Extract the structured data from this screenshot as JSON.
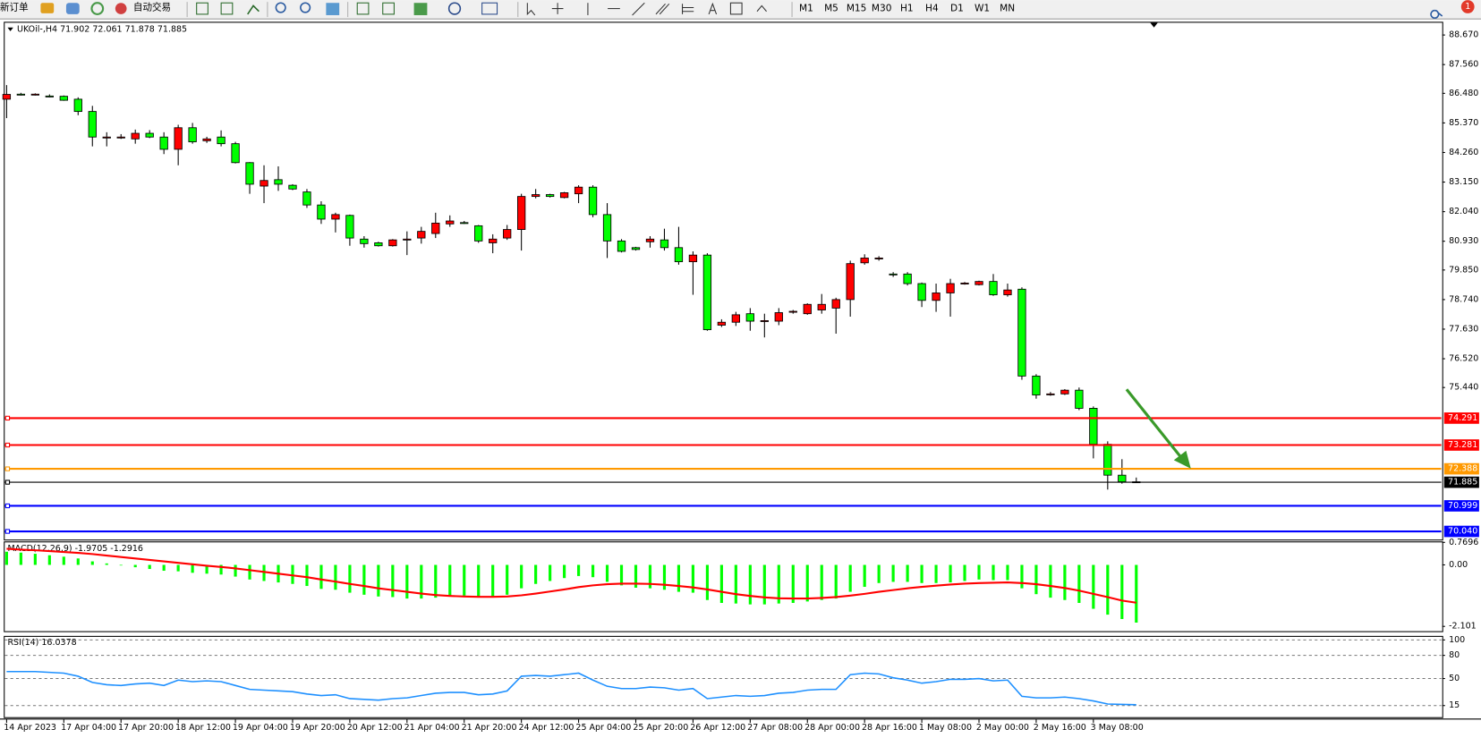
{
  "toolbar": {
    "buttons": [
      "新订单",
      "自动交易"
    ],
    "timeframes": [
      "M1",
      "M5",
      "M15",
      "M30",
      "H1",
      "H4",
      "D1",
      "W1",
      "MN"
    ],
    "badge": "1"
  },
  "chart_data": [
    {
      "type": "candlestick",
      "title": "UKOil-,H4 71.902 72.061 71.878 71.885",
      "x": [
        "14 Apr 2023",
        null,
        null,
        null,
        "17 Apr 04:00",
        null,
        null,
        null,
        "17 Apr 20:00",
        null,
        null,
        null,
        "18 Apr 12:00",
        null,
        null,
        null,
        "19 Apr 04:00",
        null,
        null,
        null,
        "19 Apr 20:00",
        null,
        null,
        null,
        "20 Apr 12:00",
        null,
        null,
        null,
        "21 Apr 04:00",
        null,
        null,
        null,
        "21 Apr 20:00",
        null,
        null,
        null,
        "24 Apr 12:00",
        null,
        null,
        null,
        "25 Apr 04:00",
        null,
        null,
        null,
        "25 Apr 20:00",
        null,
        null,
        null,
        "26 Apr 12:00",
        null,
        null,
        null,
        "27 Apr 08:00",
        null,
        null,
        null,
        "28 Apr 00:00",
        null,
        null,
        null,
        "28 Apr 16:00",
        null,
        null,
        null,
        "1 May 08:00",
        null,
        null,
        null,
        "2 May 00:00",
        null,
        null,
        null,
        "2 May 16:00",
        null,
        null,
        null,
        "3 May 08:00",
        null,
        null,
        null
      ],
      "open": [
        86.26,
        86.45,
        86.44,
        86.38,
        86.37,
        86.26,
        85.8,
        84.84,
        84.84,
        84.77,
        84.98,
        84.84,
        84.38,
        85.19,
        84.7,
        84.84,
        84.59,
        83.88,
        83.0,
        83.24,
        83.03,
        82.78,
        82.29,
        81.76,
        81.9,
        81.01,
        80.87,
        80.76,
        81.0,
        81.05,
        81.22,
        81.58,
        81.63,
        81.51,
        80.87,
        81.05,
        81.37,
        82.61,
        82.68,
        82.57,
        82.71,
        82.96,
        81.93,
        80.94,
        80.69,
        80.91,
        80.98,
        80.69,
        80.16,
        80.41,
        77.78,
        77.89,
        78.21,
        77.93,
        77.93,
        78.28,
        78.21,
        78.35,
        78.42,
        78.74,
        80.12,
        80.27,
        79.7,
        79.7,
        79.34,
        78.71,
        78.99,
        79.34,
        79.3,
        79.42,
        78.92,
        79.13,
        75.87,
        75.2,
        75.2,
        75.34,
        74.66,
        73.31,
        72.15,
        71.902
      ],
      "high": [
        86.79,
        86.5,
        86.48,
        86.44,
        86.4,
        86.33,
        86.01,
        85.02,
        84.95,
        85.12,
        85.1,
        85.02,
        85.3,
        85.37,
        84.85,
        85.09,
        84.66,
        83.9,
        83.78,
        83.74,
        83.07,
        82.89,
        82.43,
        82.0,
        81.93,
        81.12,
        80.91,
        81.01,
        81.3,
        81.47,
        82.0,
        81.9,
        81.69,
        81.54,
        81.19,
        81.54,
        82.71,
        82.89,
        82.71,
        82.78,
        83.03,
        83.03,
        82.36,
        81.01,
        80.72,
        81.12,
        81.4,
        81.47,
        80.55,
        80.48,
        78.0,
        78.28,
        78.42,
        78.21,
        78.42,
        78.35,
        78.6,
        78.95,
        78.81,
        80.2,
        80.44,
        80.37,
        79.77,
        79.77,
        79.38,
        79.34,
        79.52,
        79.4,
        79.45,
        79.7,
        79.34,
        79.2,
        75.94,
        75.27,
        75.38,
        75.44,
        74.73,
        73.42,
        72.75,
        72.061
      ],
      "low": [
        85.55,
        86.4,
        86.4,
        86.33,
        86.2,
        85.66,
        84.49,
        84.49,
        84.77,
        84.59,
        84.8,
        84.2,
        83.78,
        84.59,
        84.62,
        84.49,
        83.85,
        82.71,
        82.36,
        82.82,
        82.85,
        82.18,
        81.58,
        81.26,
        80.76,
        80.69,
        80.73,
        80.73,
        80.41,
        80.84,
        81.05,
        81.47,
        81.58,
        80.87,
        80.48,
        80.98,
        80.58,
        82.54,
        82.57,
        82.54,
        82.36,
        81.83,
        80.3,
        80.51,
        80.58,
        80.69,
        80.58,
        80.05,
        78.92,
        77.57,
        77.71,
        77.75,
        77.57,
        77.32,
        77.78,
        78.21,
        78.17,
        78.21,
        77.46,
        78.1,
        80.05,
        80.2,
        79.59,
        79.27,
        78.46,
        78.28,
        78.1,
        79.3,
        79.27,
        78.88,
        78.85,
        75.73,
        75.02,
        75.13,
        75.16,
        74.59,
        72.78,
        71.61,
        71.83,
        71.878
      ],
      "close": [
        86.44,
        86.44,
        86.45,
        86.37,
        86.22,
        85.8,
        84.84,
        84.84,
        84.84,
        84.98,
        84.84,
        84.38,
        85.19,
        84.66,
        84.77,
        84.59,
        83.88,
        83.07,
        83.21,
        83.07,
        82.89,
        82.29,
        81.76,
        81.93,
        81.05,
        80.84,
        80.76,
        80.98,
        81.01,
        81.3,
        81.61,
        81.69,
        81.61,
        80.94,
        81.01,
        81.37,
        82.61,
        82.68,
        82.61,
        82.75,
        82.96,
        81.93,
        80.94,
        80.55,
        80.62,
        81.01,
        80.69,
        80.16,
        80.41,
        77.61,
        77.89,
        78.17,
        77.93,
        77.95,
        78.25,
        78.3,
        78.56,
        78.56,
        78.74,
        80.09,
        80.3,
        80.3,
        79.68,
        79.34,
        78.71,
        78.99,
        79.34,
        79.36,
        79.42,
        78.92,
        79.1,
        75.87,
        75.16,
        75.2,
        75.34,
        74.66,
        73.31,
        72.15,
        71.9,
        71.885
      ],
      "up_color": "#ff0000",
      "down_color": "#00ff00",
      "ylim": [
        69.77,
        89.13
      ],
      "yticks": [
        {
          "value": 88.67,
          "label": "88.670"
        },
        {
          "value": 87.56,
          "label": "87.560"
        },
        {
          "value": 86.48,
          "label": "86.480"
        },
        {
          "value": 85.37,
          "label": "85.370"
        },
        {
          "value": 84.26,
          "label": "84.260"
        },
        {
          "value": 83.15,
          "label": "83.150"
        },
        {
          "value": 82.04,
          "label": "82.040"
        },
        {
          "value": 80.93,
          "label": "80.930"
        },
        {
          "value": 79.85,
          "label": "79.850"
        },
        {
          "value": 78.74,
          "label": "78.740"
        },
        {
          "value": 77.63,
          "label": "77.630"
        },
        {
          "value": 76.52,
          "label": "76.520"
        },
        {
          "value": 75.44,
          "label": "75.440"
        }
      ],
      "levels": [
        {
          "value": 74.291,
          "color": "#ff0000"
        },
        {
          "value": 73.281,
          "color": "#ff0000"
        },
        {
          "value": 72.388,
          "color": "#ff9900"
        },
        {
          "value": 71.885,
          "color": "#000000"
        },
        {
          "value": 70.999,
          "color": "#0000ff"
        },
        {
          "value": 70.04,
          "label": "70.040",
          "color": "#0000ff"
        }
      ],
      "grid": false
    },
    {
      "type": "macd",
      "title": "MACD(12,26,9) -1.9705 -1.2916",
      "histogram": [
        0.45,
        0.42,
        0.38,
        0.33,
        0.28,
        0.22,
        0.12,
        0.05,
        -0.02,
        -0.08,
        -0.14,
        -0.2,
        -0.22,
        -0.27,
        -0.3,
        -0.33,
        -0.4,
        -0.5,
        -0.55,
        -0.6,
        -0.65,
        -0.72,
        -0.82,
        -0.85,
        -0.95,
        -1.02,
        -1.08,
        -1.1,
        -1.15,
        -1.15,
        -1.12,
        -1.08,
        -1.05,
        -1.07,
        -1.08,
        -1.02,
        -0.8,
        -0.65,
        -0.55,
        -0.45,
        -0.38,
        -0.42,
        -0.58,
        -0.7,
        -0.78,
        -0.8,
        -0.85,
        -0.92,
        -0.95,
        -1.2,
        -1.3,
        -1.32,
        -1.35,
        -1.35,
        -1.32,
        -1.3,
        -1.25,
        -1.2,
        -1.15,
        -0.92,
        -0.75,
        -0.62,
        -0.58,
        -0.58,
        -0.62,
        -0.62,
        -0.6,
        -0.55,
        -0.5,
        -0.52,
        -0.52,
        -0.8,
        -1.0,
        -1.12,
        -1.2,
        -1.3,
        -1.5,
        -1.7,
        -1.85,
        -1.9705
      ],
      "signal": [
        0.55,
        0.52,
        0.5,
        0.47,
        0.44,
        0.41,
        0.37,
        0.32,
        0.27,
        0.22,
        0.17,
        0.12,
        0.07,
        0.02,
        -0.03,
        -0.07,
        -0.12,
        -0.18,
        -0.24,
        -0.3,
        -0.36,
        -0.42,
        -0.5,
        -0.57,
        -0.65,
        -0.72,
        -0.8,
        -0.86,
        -0.92,
        -0.98,
        -1.03,
        -1.06,
        -1.08,
        -1.09,
        -1.09,
        -1.08,
        -1.04,
        -0.98,
        -0.91,
        -0.84,
        -0.76,
        -0.7,
        -0.66,
        -0.64,
        -0.64,
        -0.65,
        -0.68,
        -0.72,
        -0.77,
        -0.84,
        -0.92,
        -1.0,
        -1.06,
        -1.11,
        -1.14,
        -1.15,
        -1.15,
        -1.13,
        -1.1,
        -1.05,
        -0.99,
        -0.92,
        -0.86,
        -0.8,
        -0.75,
        -0.71,
        -0.67,
        -0.64,
        -0.62,
        -0.61,
        -0.6,
        -0.62,
        -0.66,
        -0.72,
        -0.79,
        -0.88,
        -0.99,
        -1.1,
        -1.22,
        -1.2916
      ],
      "histogram_color": "#00ff00",
      "signal_color": "#ff0000",
      "ylim": [
        -2.265,
        0.7696
      ],
      "yticks": [
        0.7696,
        {
          "value": 0,
          "label": "0.00"
        },
        -2.101
      ],
      "grid": false
    },
    {
      "type": "line",
      "title": "RSI(14) 16.0378",
      "values": [
        59,
        59,
        59,
        58,
        57,
        53,
        45,
        42,
        41,
        43,
        44,
        41,
        48,
        46,
        47,
        46,
        41,
        36,
        35,
        34,
        33,
        30,
        28,
        29,
        24,
        23,
        22,
        24,
        25,
        28,
        31,
        32,
        32,
        29,
        30,
        34,
        53,
        54,
        53,
        55,
        57,
        48,
        40,
        37,
        37,
        39,
        38,
        35,
        37,
        24,
        26,
        28,
        27,
        28,
        31,
        32,
        35,
        36,
        36,
        55,
        57,
        56,
        51,
        48,
        44,
        46,
        49,
        49,
        50,
        47,
        48,
        27,
        25,
        25,
        26,
        24,
        21,
        17,
        16.5,
        16.0378
      ],
      "color": "#1e90ff",
      "ylim": [
        0,
        104
      ],
      "yticks": [
        100,
        80,
        50,
        15
      ],
      "grid": true
    }
  ]
}
